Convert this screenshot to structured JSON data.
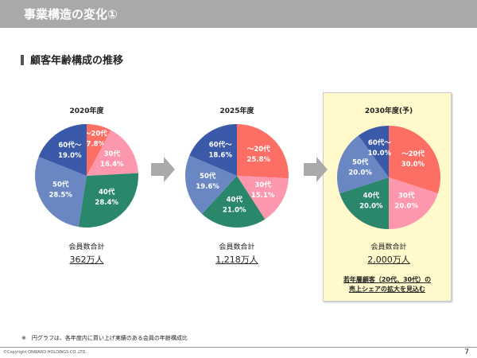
{
  "header": {
    "title": "事業構造の変化①"
  },
  "section_title": "顧客年齢構成の推移",
  "chart_data": [
    {
      "type": "pie",
      "title": "2020年度",
      "categories": [
        "～20代",
        "30代",
        "40代",
        "50代",
        "60代～"
      ],
      "values": [
        7.8,
        16.4,
        28.4,
        28.5,
        19.0
      ],
      "total_label": "会員数合計",
      "total_value": "362万人"
    },
    {
      "type": "pie",
      "title": "2025年度",
      "categories": [
        "～20代",
        "30代",
        "40代",
        "50代",
        "60代～"
      ],
      "values": [
        25.8,
        15.1,
        21.0,
        19.6,
        18.6
      ],
      "total_label": "会員数合計",
      "total_value": "1,218万人"
    },
    {
      "type": "pie",
      "title": "2030年度(予)",
      "categories": [
        "～20代",
        "30代",
        "40代",
        "50代",
        "60代～"
      ],
      "values": [
        30.0,
        20.0,
        20.0,
        20.0,
        10.0
      ],
      "total_label": "会員数合計",
      "total_value": "2,000万人"
    }
  ],
  "colors": [
    "#fd6f64",
    "#fd97ad",
    "#2a876c",
    "#6a87c3",
    "#3a59a8"
  ],
  "highlight_note": [
    "若年層顧客（20代、30代）の",
    "売上シェアの拡大を見込む"
  ],
  "footnote": "※　円グラフは、各年度内に買い上げ実績のある会員の年齢構成比",
  "copyright": "©Copyright ONWARD HOLDINGS CO.,LTD.",
  "page_number": "7"
}
